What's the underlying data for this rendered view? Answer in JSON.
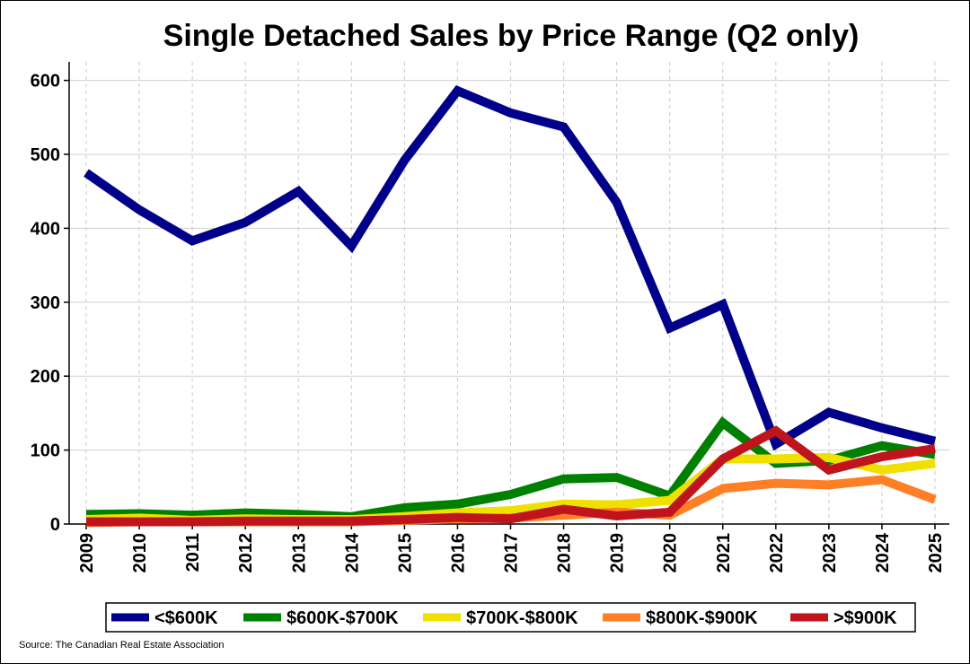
{
  "chart_data": {
    "type": "line",
    "title": "Single Detached Sales by Price Range (Q2 only)",
    "source": "Source: The Canadian Real Estate Association",
    "x": [
      "2009",
      "2010",
      "2011",
      "2012",
      "2013",
      "2014",
      "2015",
      "2016",
      "2017",
      "2018",
      "2019",
      "2020",
      "2021",
      "2022",
      "2023",
      "2024",
      "2025"
    ],
    "ylim": [
      0,
      625
    ],
    "yticks": [
      0,
      100,
      200,
      300,
      400,
      500,
      600
    ],
    "grid": true,
    "legend_position": "bottom",
    "series": [
      {
        "name": "<$600K",
        "color": "#00008B",
        "values": [
          475,
          425,
          383,
          408,
          450,
          376,
          492,
          586,
          556,
          537,
          435,
          265,
          297,
          108,
          151,
          130,
          112
        ]
      },
      {
        "name": "$600K-$700K",
        "color": "#008000",
        "values": [
          13,
          14,
          12,
          15,
          13,
          10,
          22,
          27,
          40,
          61,
          63,
          38,
          137,
          82,
          86,
          106,
          94
        ]
      },
      {
        "name": "$700K-$800K",
        "color": "#F0E000",
        "values": [
          6,
          8,
          5,
          7,
          6,
          6,
          10,
          15,
          18,
          27,
          26,
          32,
          88,
          88,
          90,
          73,
          82
        ]
      },
      {
        "name": "$800K-$900K",
        "color": "#FF7F27",
        "values": [
          2,
          3,
          3,
          3,
          3,
          3,
          5,
          7,
          8,
          12,
          16,
          12,
          48,
          55,
          53,
          60,
          33
        ]
      },
      {
        "name": ">$900K",
        "color": "#C0141C",
        "values": [
          3,
          3,
          3,
          4,
          4,
          4,
          6,
          9,
          7,
          20,
          11,
          16,
          88,
          126,
          73,
          91,
          102
        ]
      }
    ]
  }
}
